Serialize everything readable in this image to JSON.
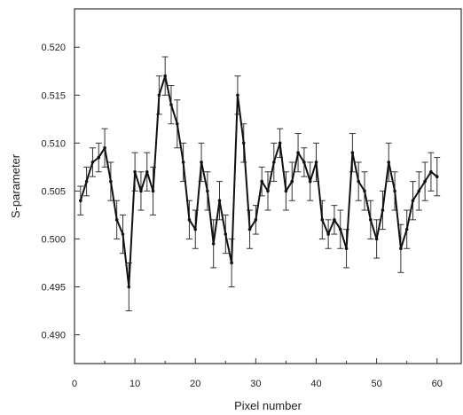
{
  "chart_data": {
    "type": "line",
    "xlabel": "Pixel number",
    "ylabel": "S-parameter",
    "xlim": [
      0,
      64
    ],
    "ylim": [
      0.487,
      0.524
    ],
    "x_ticks": [
      0,
      10,
      20,
      30,
      40,
      50,
      60
    ],
    "y_ticks": [
      0.49,
      0.495,
      0.5,
      0.505,
      0.51,
      0.515,
      0.52
    ],
    "x_tick_labels": [
      "0",
      "10",
      "20",
      "30",
      "40",
      "50",
      "60"
    ],
    "y_tick_labels": [
      "0.490",
      "0.495",
      "0.500",
      "0.505",
      "0.510",
      "0.515",
      "0.520"
    ],
    "grid": false,
    "series": [
      {
        "x": [
          1,
          2,
          3,
          4,
          5,
          6,
          7,
          8,
          9,
          10,
          11,
          12,
          13,
          14,
          15,
          16,
          17,
          18,
          19,
          20,
          21,
          22,
          23,
          24,
          25,
          26,
          27,
          28,
          29,
          30,
          31,
          32,
          33,
          34,
          35,
          36,
          37,
          38,
          39,
          40,
          41,
          42,
          43,
          44,
          45,
          46,
          47,
          48,
          49,
          50,
          51,
          52,
          53,
          54,
          55,
          56,
          57,
          58,
          59,
          60
        ],
        "y": [
          0.504,
          0.506,
          0.508,
          0.5085,
          0.5095,
          0.506,
          0.502,
          0.5005,
          0.495,
          0.507,
          0.505,
          0.507,
          0.505,
          0.515,
          0.517,
          0.514,
          0.512,
          0.508,
          0.502,
          0.501,
          0.508,
          0.505,
          0.4995,
          0.504,
          0.5005,
          0.4975,
          0.515,
          0.51,
          0.501,
          0.502,
          0.506,
          0.505,
          0.508,
          0.51,
          0.505,
          0.506,
          0.509,
          0.508,
          0.506,
          0.508,
          0.502,
          0.5005,
          0.502,
          0.501,
          0.499,
          0.509,
          0.506,
          0.505,
          0.502,
          0.5,
          0.503,
          0.508,
          0.505,
          0.499,
          0.501,
          0.504,
          0.505,
          0.506,
          0.507,
          0.5065
        ],
        "err": [
          0.0015,
          0.0015,
          0.0015,
          0.0015,
          0.002,
          0.002,
          0.002,
          0.002,
          0.0025,
          0.002,
          0.002,
          0.002,
          0.0025,
          0.002,
          0.002,
          0.002,
          0.0025,
          0.002,
          0.002,
          0.002,
          0.002,
          0.002,
          0.0025,
          0.002,
          0.002,
          0.0025,
          0.002,
          0.002,
          0.002,
          0.0015,
          0.0015,
          0.002,
          0.002,
          0.0015,
          0.002,
          0.002,
          0.002,
          0.0015,
          0.002,
          0.002,
          0.002,
          0.0015,
          0.0015,
          0.002,
          0.002,
          0.002,
          0.002,
          0.002,
          0.002,
          0.002,
          0.002,
          0.002,
          0.002,
          0.0025,
          0.002,
          0.002,
          0.002,
          0.002,
          0.002,
          0.002
        ]
      }
    ]
  }
}
